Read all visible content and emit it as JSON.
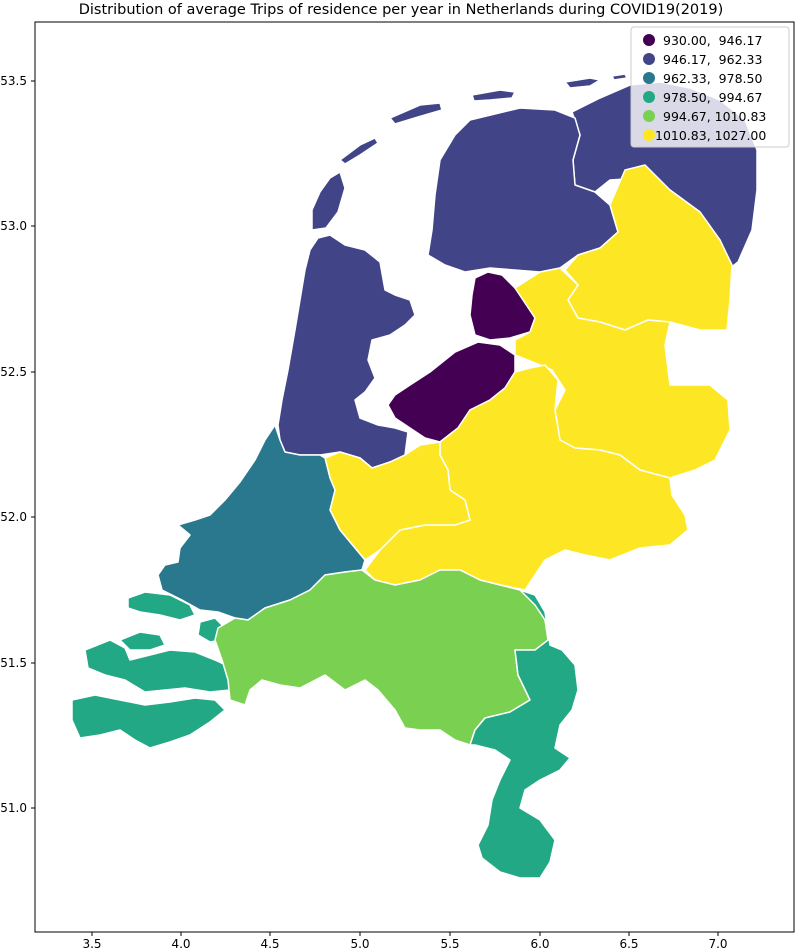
{
  "title": "Distribution of average Trips of residence per year in Netherlands during COVID19(2019)",
  "chart_data": {
    "type": "choropleth",
    "title": "Distribution of average Trips of residence per year in Netherlands during COVID19(2019)",
    "xlim": [
      3.2,
      7.45
    ],
    "ylim": [
      50.7,
      53.7
    ],
    "x_ticks": [
      "3.5",
      "4.0",
      "4.5",
      "5.0",
      "5.5",
      "6.0",
      "6.5",
      "7.0"
    ],
    "x_tick_values": [
      3.5,
      4.0,
      4.5,
      5.0,
      5.5,
      6.0,
      6.5,
      7.0
    ],
    "y_ticks": [
      "51.0",
      "51.5",
      "52.0",
      "52.5",
      "53.0",
      "53.5"
    ],
    "y_tick_values": [
      51.0,
      51.5,
      52.0,
      52.5,
      53.0,
      53.5
    ],
    "legend": {
      "location": "upper right",
      "entries": [
        {
          "label": "930.00,  946.17",
          "color": "#440154"
        },
        {
          "label": "946.17,  962.33",
          "color": "#414487"
        },
        {
          "label": "962.33,  978.50",
          "color": "#2a788e"
        },
        {
          "label": "978.50,  994.67",
          "color": "#22a884"
        },
        {
          "label": "994.67, 1010.83",
          "color": "#7ad151"
        },
        {
          "label": "1010.83, 1027.00",
          "color": "#fde725"
        }
      ]
    }
  }
}
